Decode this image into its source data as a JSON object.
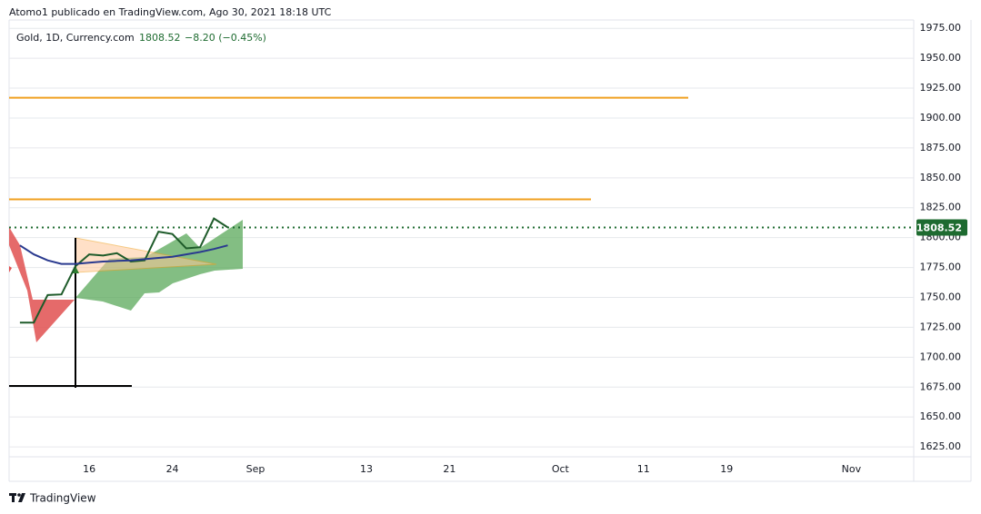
{
  "header": "Atomo1 publicado en TradingView.com, Ago 30, 2021 18:18 UTC",
  "legend": {
    "symbol": "Gold, 1D, Currency.com",
    "change": "−8.20 (−0.45%)"
  },
  "footer": "TradingView",
  "chart_data": {
    "type": "line",
    "categories": [
      null,
      null,
      null,
      null,
      null,
      "16",
      null,
      null,
      null,
      null,
      null,
      "24",
      null,
      null,
      null,
      null,
      null,
      "Sep",
      null,
      null,
      null,
      null,
      null,
      null,
      null,
      "13",
      null,
      null,
      null,
      null,
      null,
      "21",
      null,
      null,
      null,
      null,
      null,
      null,
      null,
      "Oct",
      null,
      null,
      null,
      null,
      null,
      "11",
      null,
      null,
      null,
      null,
      null,
      "19",
      null,
      null,
      null,
      null,
      null,
      null,
      null,
      null,
      "Nov",
      null,
      null,
      null,
      null
    ],
    "series": [
      {
        "color": "#1e5b2a",
        "values": [
          1729,
          1729,
          1752,
          1752.5,
          1776,
          1786,
          1785,
          1787,
          1780,
          1781,
          1805,
          1803,
          1791,
          1792,
          1816,
          1808.52,
          null,
          null,
          null,
          null,
          null,
          null,
          null,
          null,
          null,
          null,
          null,
          null,
          null,
          null,
          null,
          null,
          null,
          null,
          null,
          null,
          null,
          null,
          null,
          null,
          null,
          null,
          null,
          null,
          null,
          null,
          null,
          null,
          null,
          null,
          null,
          null,
          null,
          null,
          null,
          null,
          null,
          null,
          null,
          null,
          null,
          null,
          null,
          null,
          null
        ]
      },
      {
        "color": "#2a3a8f",
        "values": [
          1793.5,
          1786,
          1781,
          1778,
          1778,
          1779,
          1780,
          1780.5,
          1781,
          1782,
          1783,
          1784,
          1786,
          1788,
          1790.5,
          1793.5,
          null,
          null,
          null,
          null,
          null,
          null,
          null,
          null,
          null,
          null,
          null,
          null,
          null,
          null,
          null,
          null,
          null,
          null,
          null,
          null,
          null,
          null,
          null,
          null,
          null,
          null,
          null,
          null,
          null,
          null,
          null,
          null,
          null,
          null,
          null,
          null,
          null,
          null,
          null,
          null,
          null,
          null,
          null,
          null,
          null,
          null,
          null,
          null,
          null
        ]
      }
    ],
    "hlines": [
      {
        "value": 1917,
        "color": "#f0a020"
      },
      {
        "value": 1832,
        "color": "#f0a020"
      }
    ],
    "last_price": 1808.52,
    "last_price_color": "#1e6b30",
    "ylim": [
      1619,
      1982
    ],
    "yticks": [
      {
        "value": 1625,
        "label": "1625.00"
      },
      {
        "value": 1650,
        "label": "1650.00"
      },
      {
        "value": 1675,
        "label": "1675.00"
      },
      {
        "value": 1700,
        "label": "1700.00"
      },
      {
        "value": 1725,
        "label": "1725.00"
      },
      {
        "value": 1750,
        "label": "1750.00"
      },
      {
        "value": 1775,
        "label": "1775.00"
      },
      {
        "value": 1800,
        "label": "1800.00"
      },
      {
        "value": 1825,
        "label": "1825.00"
      },
      {
        "value": 1850,
        "label": "1850.00"
      },
      {
        "value": 1875,
        "label": "1875.00"
      },
      {
        "value": 1900,
        "label": "1900.00"
      },
      {
        "value": 1925,
        "label": "1925.00"
      },
      {
        "value": 1950,
        "label": "1950.00"
      },
      {
        "value": 1975,
        "label": "1975.00"
      }
    ],
    "grid": true
  }
}
